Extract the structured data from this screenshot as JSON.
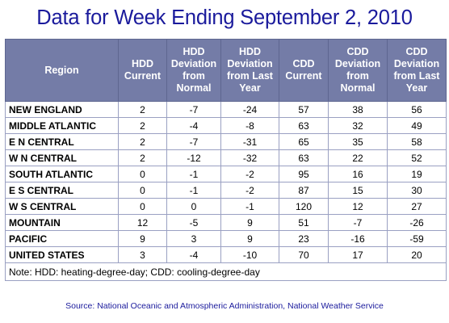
{
  "title": "Data for Week Ending September 2, 2010",
  "table": {
    "headers": [
      [
        "Region"
      ],
      [
        "HDD",
        "Current"
      ],
      [
        "HDD",
        "Deviation",
        "from",
        "Normal"
      ],
      [
        "HDD",
        "Deviation",
        "from Last",
        "Year"
      ],
      [
        "CDD",
        "Current"
      ],
      [
        "CDD",
        "Deviation",
        "from",
        "Normal"
      ],
      [
        "CDD",
        "Deviation",
        "from Last",
        "Year"
      ]
    ],
    "rows": [
      [
        "NEW ENGLAND",
        "2",
        "-7",
        "-24",
        "57",
        "38",
        "56"
      ],
      [
        "MIDDLE ATLANTIC",
        "2",
        "-4",
        "-8",
        "63",
        "32",
        "49"
      ],
      [
        "E N CENTRAL",
        "2",
        "-7",
        "-31",
        "65",
        "35",
        "58"
      ],
      [
        "W N CENTRAL",
        "2",
        "-12",
        "-32",
        "63",
        "22",
        "52"
      ],
      [
        "SOUTH ATLANTIC",
        "0",
        "-1",
        "-2",
        "95",
        "16",
        "19"
      ],
      [
        "E S CENTRAL",
        "0",
        "-1",
        "-2",
        "87",
        "15",
        "30"
      ],
      [
        "W S CENTRAL",
        "0",
        "0",
        "-1",
        "120",
        "12",
        "27"
      ],
      [
        "MOUNTAIN",
        "12",
        "-5",
        "9",
        "51",
        "-7",
        "-26"
      ],
      [
        "PACIFIC",
        "9",
        "3",
        "9",
        "23",
        "-16",
        "-59"
      ],
      [
        "UNITED STATES",
        "3",
        "-4",
        "-10",
        "70",
        "17",
        "20"
      ]
    ],
    "note": "Note: HDD: heating-degree-day; CDD: cooling-degree-day"
  },
  "source": "Source:  National Oceanic and Atmospheric Administration, National Weather Service",
  "colors": {
    "title": "#1a1a9c",
    "header_bg": "#747ca7",
    "header_text": "#ffffff",
    "border": "#9aa0c2"
  }
}
